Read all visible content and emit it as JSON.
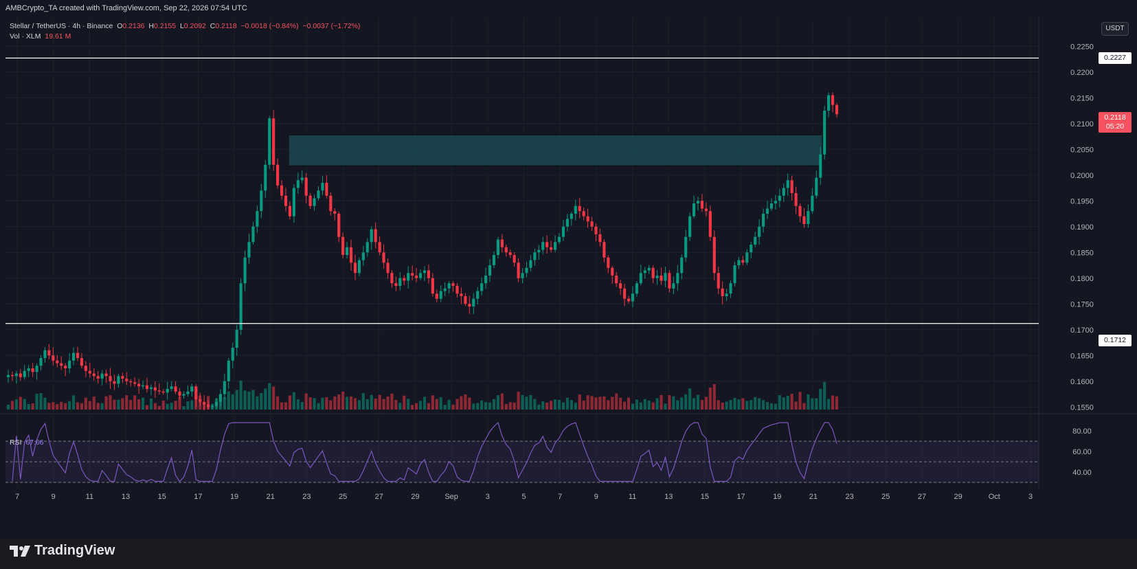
{
  "header": {
    "attribution": "AMBCrypto_TA created with TradingView.com, Sep 22, 2026 07:54 UTC"
  },
  "legend": {
    "symbol": "Stellar / TetherUS · 4h · Binance",
    "open_label": "O",
    "open": "0.2136",
    "high_label": "H",
    "high": "0.2155",
    "low_label": "L",
    "low": "0.2092",
    "close_label": "C",
    "close": "0.2118",
    "change": "−0.0018 (−0.84%)",
    "change2": "−0.0037 (−1.72%)",
    "vol_label": "Vol · XLM",
    "vol_value": "19.61 M",
    "rsi_label": "RSI",
    "rsi_value": "67.66"
  },
  "currency_button": "USDT",
  "price_tags": {
    "top_line": "0.2227",
    "bottom_line": "0.1712",
    "current": "0.2118",
    "countdown": "05:20"
  },
  "brand": "TradingView",
  "colors": {
    "up": "#089981",
    "down": "#f23645",
    "zone": "#1b4d55",
    "rsi_line": "#7e57c2",
    "rsi_band": "#7e57c2"
  },
  "chart_data": {
    "type": "candlestick",
    "symbol": "XLM/USDT",
    "interval": "4h",
    "price_axis": {
      "ylim": [
        0.1545,
        0.2265
      ],
      "ticks": [
        "0.2250",
        "0.2200",
        "0.2150",
        "0.2100",
        "0.2050",
        "0.2000",
        "0.1950",
        "0.1900",
        "0.1850",
        "0.1800",
        "0.1750",
        "0.1700",
        "0.1650",
        "0.1600",
        "0.1550"
      ]
    },
    "x_axis": {
      "ticks": [
        "7",
        "9",
        "11",
        "13",
        "15",
        "17",
        "19",
        "21",
        "23",
        "25",
        "27",
        "29",
        "Sep",
        "3",
        "5",
        "7",
        "9",
        "11",
        "13",
        "15",
        "17",
        "19",
        "21",
        "23",
        "25",
        "27",
        "29",
        "Oct",
        "3"
      ]
    },
    "horizontal_lines": [
      0.2227,
      0.1712
    ],
    "zone": {
      "top": 0.2078,
      "bottom": 0.2018
    },
    "closes": [
      0.1612,
      0.161,
      0.1615,
      0.1608,
      0.162,
      0.1625,
      0.1618,
      0.163,
      0.1645,
      0.166,
      0.165,
      0.164,
      0.1635,
      0.163,
      0.1625,
      0.164,
      0.1655,
      0.1645,
      0.163,
      0.162,
      0.1615,
      0.161,
      0.1605,
      0.1615,
      0.161,
      0.16,
      0.1595,
      0.161,
      0.1605,
      0.16,
      0.1598,
      0.1595,
      0.159,
      0.1592,
      0.1585,
      0.1588,
      0.1582,
      0.158,
      0.1578,
      0.1585,
      0.159,
      0.158,
      0.1572,
      0.1575,
      0.158,
      0.159,
      0.1565,
      0.156,
      0.1555,
      0.155,
      0.1552,
      0.156,
      0.1575,
      0.16,
      0.164,
      0.1665,
      0.17,
      0.179,
      0.184,
      0.187,
      0.19,
      0.193,
      0.197,
      0.202,
      0.211,
      0.202,
      0.198,
      0.196,
      0.194,
      0.192,
      0.1975,
      0.199,
      0.1995,
      0.196,
      0.194,
      0.1955,
      0.197,
      0.1985,
      0.196,
      0.193,
      0.1925,
      0.188,
      0.1845,
      0.186,
      0.183,
      0.181,
      0.1835,
      0.185,
      0.187,
      0.1895,
      0.187,
      0.185,
      0.183,
      0.181,
      0.179,
      0.1785,
      0.18,
      0.1795,
      0.181,
      0.1805,
      0.18,
      0.181,
      0.1815,
      0.18,
      0.177,
      0.176,
      0.1775,
      0.178,
      0.179,
      0.1785,
      0.177,
      0.1765,
      0.175,
      0.1745,
      0.176,
      0.1775,
      0.179,
      0.1805,
      0.1825,
      0.1845,
      0.1875,
      0.186,
      0.185,
      0.1845,
      0.183,
      0.18,
      0.181,
      0.182,
      0.1835,
      0.185,
      0.1855,
      0.187,
      0.186,
      0.1855,
      0.187,
      0.188,
      0.19,
      0.1915,
      0.1925,
      0.194,
      0.193,
      0.192,
      0.191,
      0.19,
      0.1885,
      0.187,
      0.184,
      0.182,
      0.1805,
      0.179,
      0.178,
      0.176,
      0.1755,
      0.177,
      0.179,
      0.181,
      0.1815,
      0.182,
      0.18,
      0.1805,
      0.1795,
      0.181,
      0.178,
      0.179,
      0.181,
      0.184,
      0.188,
      0.192,
      0.1945,
      0.195,
      0.1935,
      0.193,
      0.188,
      0.181,
      0.178,
      0.1765,
      0.177,
      0.179,
      0.1825,
      0.1835,
      0.183,
      0.185,
      0.1865,
      0.188,
      0.19,
      0.1925,
      0.1935,
      0.1945,
      0.195,
      0.196,
      0.1975,
      0.199,
      0.1965,
      0.194,
      0.192,
      0.1905,
      0.193,
      0.196,
      0.1995,
      0.204,
      0.2125,
      0.2155,
      0.2136,
      0.2118
    ],
    "rsi": {
      "ylim": [
        30,
        90
      ],
      "ticks": [
        "80.00",
        "60.00",
        "40.00"
      ],
      "bands": [
        70,
        50,
        30
      ],
      "last": 67.66
    }
  }
}
